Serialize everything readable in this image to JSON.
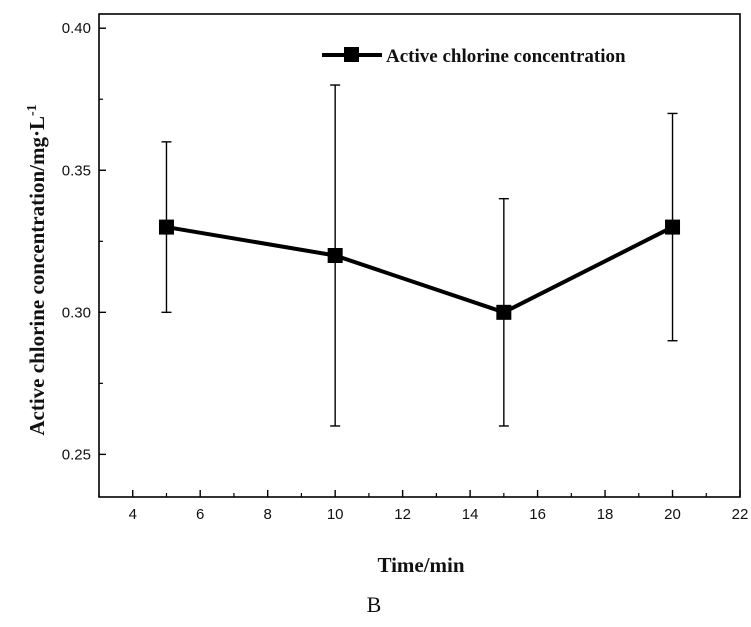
{
  "chart_data": {
    "type": "line",
    "x": [
      5,
      10,
      15,
      20
    ],
    "series": [
      {
        "name": "Active chlorine concentration",
        "values": [
          0.33,
          0.32,
          0.3,
          0.33
        ],
        "error_low": [
          0.3,
          0.26,
          0.26,
          0.29
        ],
        "error_high": [
          0.36,
          0.38,
          0.34,
          0.37
        ],
        "marker": "square",
        "color": "#000000"
      }
    ],
    "xlabel": "Time/min",
    "ylabel_main": "Active chlorine concentration/mg·L",
    "ylabel_exponent": "-1",
    "xlim": [
      3,
      22
    ],
    "ylim": [
      0.235,
      0.405
    ],
    "xticks": [
      4,
      6,
      8,
      10,
      12,
      14,
      16,
      18,
      20,
      22
    ],
    "xtick_labels": [
      "4",
      "6",
      "8",
      "10",
      "12",
      "14",
      "16",
      "18",
      "20",
      "22"
    ],
    "yticks": [
      0.25,
      0.3,
      0.35,
      0.4
    ],
    "ytick_labels": [
      "0.25",
      "0.30",
      "0.35",
      "0.40"
    ],
    "grid": false,
    "legend_position": "top-right",
    "panel_label": "B"
  }
}
